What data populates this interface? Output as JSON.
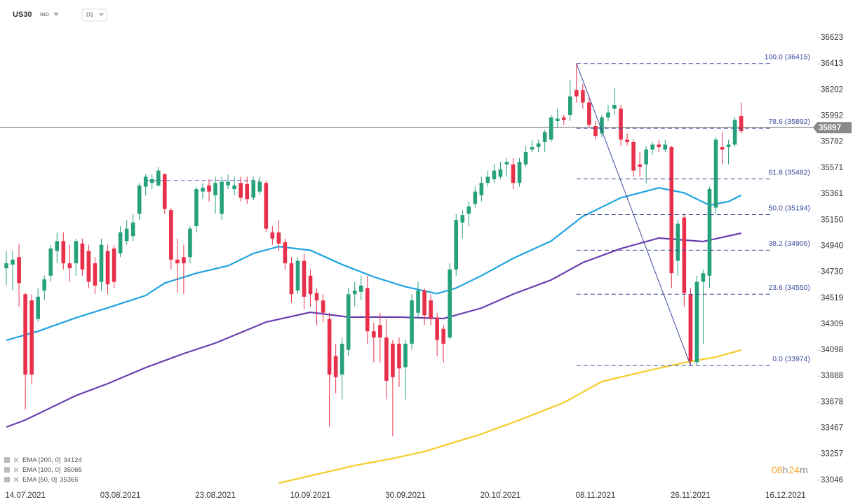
{
  "chart_data": {
    "type": "candlestick",
    "symbol": "US30",
    "market": "IND",
    "interval": "D1",
    "xlim": [
      -4,
      125
    ],
    "xticks": [
      {
        "value": 0,
        "label": "14.07.2021"
      },
      {
        "value": 15,
        "label": "03.08.2021"
      },
      {
        "value": 30,
        "label": "23.08.2021"
      },
      {
        "value": 45,
        "label": "10.09.2021"
      },
      {
        "value": 60,
        "label": "30.09.2021"
      },
      {
        "value": 75,
        "label": "20.10.2021"
      },
      {
        "value": 90,
        "label": "08.11.2021"
      },
      {
        "value": 105,
        "label": "26.11.2021"
      },
      {
        "value": 120,
        "label": "16.12.2021"
      }
    ],
    "ylim": [
      32938,
      36929
    ],
    "yticks": [
      36623,
      36413,
      36202,
      35992,
      35782,
      35571,
      35361,
      35150,
      34940,
      34730,
      34519,
      34309,
      34098,
      33888,
      33678,
      33467,
      33257,
      33046
    ],
    "up_color": "#26a17b",
    "down_color": "#e8304a",
    "candles": {
      "x": [
        -3,
        -2,
        -1,
        0,
        1,
        2,
        3,
        4,
        5,
        6,
        7,
        8,
        9,
        10,
        11,
        12,
        13,
        14,
        15,
        16,
        17,
        18,
        19,
        20,
        21,
        22,
        23,
        24,
        25,
        26,
        27,
        28,
        29,
        30,
        31,
        32,
        33,
        34,
        35,
        36,
        37,
        38,
        39,
        40,
        41,
        42,
        43,
        44,
        45,
        46,
        47,
        48,
        49,
        50,
        51,
        52,
        53,
        54,
        55,
        56,
        57,
        58,
        59,
        60,
        61,
        62,
        63,
        64,
        65,
        66,
        67,
        68,
        69,
        70,
        71,
        72,
        73,
        74,
        75,
        76,
        77,
        78,
        79,
        80,
        81,
        82,
        83,
        84,
        85,
        86,
        87,
        88,
        89,
        90,
        91,
        92,
        93,
        94,
        95,
        96,
        97,
        98,
        99,
        100,
        101,
        102,
        103,
        104,
        105,
        106,
        107,
        108,
        109,
        110,
        111,
        112,
        113
      ],
      "open": [
        34760,
        34790,
        34850,
        34550,
        34500,
        34350,
        34580,
        34700,
        34900,
        34980,
        34800,
        34800,
        34960,
        34900,
        34800,
        34650,
        34900,
        34920,
        34880,
        34980,
        35020,
        35200,
        35420,
        35450,
        35430,
        35520,
        35230,
        34830,
        34850,
        34850,
        35100,
        35380,
        35430,
        35350,
        35200,
        35430,
        35400,
        35450,
        35440,
        35330,
        35380,
        35450,
        35050,
        35050,
        34970,
        34800,
        34580,
        34820,
        34700,
        34560,
        34500,
        34350,
        34050,
        33900,
        34100,
        34550,
        34570,
        34600,
        34250,
        34300,
        34200,
        34150,
        34150,
        33960,
        34150,
        34400,
        34580,
        34500,
        34360,
        34270,
        34200,
        34750,
        35130,
        35200,
        35280,
        35350,
        35450,
        35480,
        35500,
        35600,
        35600,
        35450,
        35600,
        35720,
        35740,
        35780,
        35800,
        35950,
        35980,
        36000,
        36200,
        36200,
        36100,
        35910,
        35850,
        35980,
        36050,
        36050,
        35800,
        35780,
        35600,
        35600,
        35720,
        35760,
        35720,
        35740,
        34820,
        35170,
        34550,
        34000,
        34650,
        34700,
        35250,
        35740,
        35740,
        35760,
        35990
      ],
      "high": [
        34900,
        34900,
        34960,
        34560,
        34550,
        34600,
        34700,
        34950,
        35050,
        35050,
        34950,
        35000,
        35000,
        34950,
        34850,
        35000,
        34950,
        34950,
        35100,
        35150,
        35200,
        35450,
        35520,
        35520,
        35580,
        35530,
        35250,
        35000,
        34950,
        35100,
        35420,
        35450,
        35480,
        35500,
        35500,
        35520,
        35500,
        35500,
        35500,
        35500,
        35500,
        35470,
        35100,
        35150,
        35000,
        34850,
        34850,
        34880,
        34750,
        34600,
        34550,
        34400,
        34150,
        34200,
        34600,
        34650,
        34700,
        34700,
        34320,
        34400,
        34350,
        34180,
        34200,
        34180,
        34550,
        34650,
        34600,
        34550,
        34400,
        34300,
        34800,
        35200,
        35230,
        35300,
        35420,
        35500,
        35550,
        35600,
        35620,
        35650,
        35650,
        35650,
        35750,
        35800,
        35800,
        35880,
        36000,
        36050,
        36000,
        36280,
        36415,
        36250,
        36150,
        35950,
        36000,
        36080,
        36220,
        36080,
        35850,
        35800,
        35700,
        35750,
        35780,
        35800,
        35800,
        35750,
        35150,
        35200,
        34600,
        34700,
        34750,
        35420,
        35820,
        35860,
        35800,
        35980,
        36100
      ],
      "low": [
        34620,
        34580,
        34450,
        33620,
        33820,
        34330,
        34500,
        34650,
        34800,
        34750,
        34650,
        34700,
        34700,
        34600,
        34550,
        34580,
        34550,
        34600,
        34850,
        34950,
        34980,
        35150,
        35350,
        35400,
        35420,
        35200,
        34750,
        34560,
        34550,
        34800,
        35050,
        35320,
        35300,
        35200,
        35150,
        35400,
        35350,
        35300,
        35280,
        35310,
        35350,
        35050,
        34950,
        34900,
        34750,
        34480,
        34550,
        34430,
        34450,
        34300,
        34320,
        33480,
        33750,
        33700,
        34050,
        34450,
        34500,
        34150,
        34000,
        34000,
        33700,
        33400,
        33800,
        33700,
        34100,
        34350,
        34300,
        34300,
        34050,
        34000,
        34180,
        34700,
        35000,
        35100,
        35250,
        35300,
        35420,
        35450,
        35480,
        35500,
        35400,
        35420,
        35580,
        35700,
        35700,
        35700,
        35780,
        35900,
        35920,
        35950,
        36100,
        36050,
        35900,
        35800,
        35820,
        35950,
        36000,
        35750,
        35750,
        35500,
        35500,
        35450,
        35680,
        35700,
        35700,
        34600,
        34700,
        34450,
        33974,
        33980,
        34150,
        34600,
        35200,
        35600,
        35600,
        35740,
        35850
      ],
      "close": [
        34800,
        34830,
        34640,
        33900,
        33900,
        34530,
        34670,
        34920,
        34980,
        34800,
        34760,
        34980,
        34750,
        34650,
        34620,
        34950,
        34630,
        34650,
        35050,
        35080,
        35130,
        35430,
        35500,
        35480,
        35550,
        35240,
        34830,
        34800,
        34800,
        35080,
        35400,
        35410,
        35380,
        35450,
        35460,
        35460,
        35430,
        35330,
        35320,
        35470,
        35460,
        35080,
        35000,
        34960,
        34800,
        34550,
        34820,
        34530,
        34550,
        34500,
        34400,
        33900,
        33880,
        34150,
        34550,
        34580,
        34620,
        34250,
        34200,
        34200,
        33850,
        33880,
        33950,
        34150,
        34500,
        34580,
        34380,
        34350,
        34180,
        34150,
        34750,
        35150,
        35190,
        35260,
        35380,
        35450,
        35500,
        35550,
        35560,
        35620,
        35450,
        35620,
        35700,
        35740,
        35770,
        35860,
        35980,
        35970,
        35960,
        36150,
        36150,
        36100,
        35920,
        35830,
        35980,
        36020,
        36080,
        35800,
        35780,
        35550,
        35580,
        35720,
        35760,
        35740,
        35760,
        34720,
        35120,
        34560,
        34010,
        34650,
        34720,
        35400,
        35800,
        35720,
        35760,
        35960,
        35870
      ]
    },
    "series": [
      {
        "name": "EMA [200, 0]",
        "last": 34124,
        "color": "#f5cd2a",
        "x": [
          40,
          52,
          58,
          63,
          72,
          78,
          85,
          91,
          98,
          104,
          109,
          113
        ],
        "values": [
          33023,
          33165,
          33222,
          33278,
          33420,
          33533,
          33674,
          33844,
          33929,
          33997,
          34042,
          34099
        ]
      },
      {
        "name": "EMA [100, 0]",
        "last": 35065,
        "color": "#6a3fb0",
        "x": [
          -3,
          0,
          8,
          13,
          19,
          25,
          30,
          38,
          45,
          51,
          59,
          66,
          72,
          77,
          83,
          88,
          94,
          100,
          107,
          113
        ],
        "values": [
          33476,
          33533,
          33731,
          33827,
          33957,
          34070,
          34155,
          34325,
          34404,
          34365,
          34365,
          34353,
          34438,
          34551,
          34665,
          34806,
          34919,
          35004,
          34976,
          35044
        ]
      },
      {
        "name": "EMA [50, 0]",
        "last": 35365,
        "color": "#1fa3e0",
        "x": [
          -3,
          2,
          8,
          13,
          19,
          22,
          27,
          32,
          36,
          40,
          45,
          50,
          55,
          60,
          65,
          68,
          72,
          77,
          83,
          88,
          94,
          100,
          104,
          108,
          111,
          113
        ],
        "values": [
          34178,
          34250,
          34360,
          34440,
          34540,
          34640,
          34720,
          34780,
          34880,
          34936,
          34905,
          34790,
          34690,
          34610,
          34555,
          34600,
          34700,
          34840,
          34980,
          35180,
          35330,
          35410,
          35370,
          35270,
          35300,
          35350
        ]
      }
    ],
    "fibonacci": {
      "from_x": 87,
      "to_x": 105,
      "color": "#3b4a9c",
      "levels": [
        {
          "value": 36415,
          "label": "100.0 (36415)"
        },
        {
          "value": 35892,
          "label": "78.6 (35892)"
        },
        {
          "value": 35482,
          "label": "61.8 (35482)"
        },
        {
          "value": 35194,
          "label": "50.0 (35194)"
        },
        {
          "value": 34906,
          "label": "38.2 (34906)"
        },
        {
          "value": 34550,
          "label": "23.6 (34550)"
        },
        {
          "value": 33974,
          "label": "0.0 (33974)"
        }
      ]
    },
    "trendline": {
      "value": 35470,
      "x": [
        19,
        37
      ],
      "color": "#7b5cc4"
    },
    "price": 35897,
    "countdown": {
      "hours": "08",
      "hours_unit": "h",
      "minutes": "24",
      "minutes_unit": "m"
    }
  }
}
